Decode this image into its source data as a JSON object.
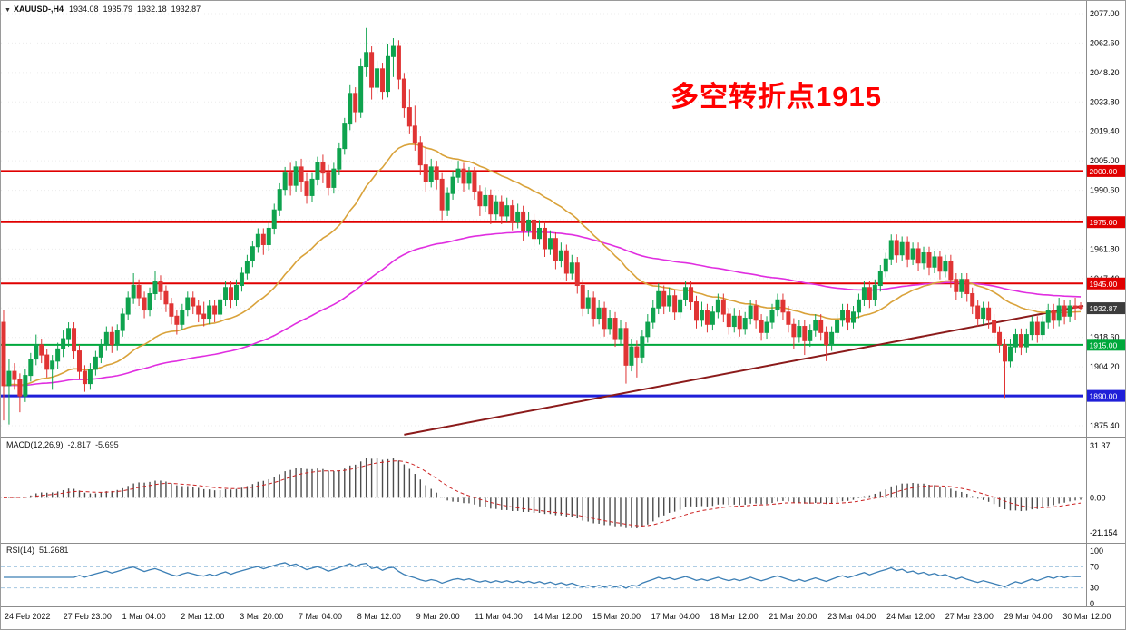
{
  "header": {
    "dropdown_icon": "▼",
    "symbol": "XAUUSD-,H4",
    "open": "1934.08",
    "high": "1935.79",
    "low": "1932.18",
    "close": "1932.87"
  },
  "annotation": {
    "text": "多空转折点1915"
  },
  "colors": {
    "up_candle": "#0fa34e",
    "down_candle": "#e03434",
    "grid": "#ececec",
    "axis_text": "#000000",
    "level_red": "#e00000",
    "level_green": "#00a83c",
    "level_blue": "#1f1fd8",
    "ma_fast": "#d9a23a",
    "ma_slow": "#e02ee0",
    "trendline": "#8b1a1a",
    "macd_hist": "#4d4d4d",
    "macd_signal": "#cc2222",
    "rsi_line": "#3c7fb5",
    "rsi_levels": "#a3c6e0",
    "current_badge": "#3c3c3c",
    "separator": "#8c8c8c"
  },
  "chart_data": {
    "type": "candlestick",
    "title": "XAUUSD-,H4",
    "symbol": "XAUUSD-",
    "timeframe": "H4",
    "y_axis": {
      "top_value": 2077.0,
      "step": 14.4,
      "labels": [
        "2077.00",
        "2062.60",
        "2048.20",
        "2033.80",
        "2019.40",
        "2005.00",
        "1990.60",
        "1976.20",
        "1961.80",
        "1947.40",
        "1933.00",
        "1918.60",
        "1904.20",
        "1889.80",
        "1875.40"
      ]
    },
    "levels": [
      {
        "label": "2000.00",
        "price": 2000.0,
        "color": "#e00000",
        "width": 2
      },
      {
        "label": "1975.00",
        "price": 1975.0,
        "color": "#e00000",
        "width": 2
      },
      {
        "label": "1945.00",
        "price": 1945.0,
        "color": "#e00000",
        "width": 2
      },
      {
        "label": "1915.00",
        "price": 1915.0,
        "color": "#00a83c",
        "width": 2
      },
      {
        "label": "1890.00",
        "price": 1890.0,
        "color": "#1f1fd8",
        "width": 3
      }
    ],
    "current_price": {
      "label": "1932.87",
      "value": 1932.87
    },
    "overlays": {
      "ma_fast": {
        "period": 30,
        "color": "#d9a23a"
      },
      "ma_slow": {
        "period": 100,
        "color": "#e02ee0"
      },
      "trendline": {
        "from_index": 74,
        "from_price": 1871,
        "to_index": 200,
        "to_price": 1934
      }
    },
    "ohlc": [
      [
        1926,
        1932,
        1878,
        1895
      ],
      [
        1895,
        1908,
        1876,
        1902
      ],
      [
        1902,
        1906,
        1893,
        1898
      ],
      [
        1898,
        1901,
        1882,
        1890
      ],
      [
        1890,
        1903,
        1887,
        1900
      ],
      [
        1900,
        1911,
        1897,
        1908
      ],
      [
        1908,
        1920,
        1905,
        1915
      ],
      [
        1915,
        1918,
        1906,
        1910
      ],
      [
        1910,
        1913,
        1899,
        1903
      ],
      [
        1903,
        1910,
        1893,
        1907
      ],
      [
        1907,
        1916,
        1903,
        1913
      ],
      [
        1913,
        1922,
        1909,
        1918
      ],
      [
        1918,
        1926,
        1914,
        1923
      ],
      [
        1923,
        1926,
        1908,
        1912
      ],
      [
        1912,
        1915,
        1898,
        1902
      ],
      [
        1902,
        1905,
        1892,
        1896
      ],
      [
        1896,
        1906,
        1893,
        1903
      ],
      [
        1903,
        1912,
        1900,
        1909
      ],
      [
        1909,
        1918,
        1906,
        1915
      ],
      [
        1915,
        1924,
        1912,
        1921
      ],
      [
        1921,
        1924,
        1911,
        1915
      ],
      [
        1915,
        1925,
        1912,
        1922
      ],
      [
        1922,
        1933,
        1919,
        1930
      ],
      [
        1930,
        1941,
        1927,
        1938
      ],
      [
        1938,
        1950,
        1935,
        1944
      ],
      [
        1944,
        1947,
        1934,
        1938
      ],
      [
        1938,
        1941,
        1928,
        1932
      ],
      [
        1932,
        1943,
        1929,
        1940
      ],
      [
        1940,
        1951,
        1937,
        1946
      ],
      [
        1946,
        1949,
        1937,
        1941
      ],
      [
        1941,
        1944,
        1931,
        1935
      ],
      [
        1935,
        1938,
        1925,
        1929
      ],
      [
        1929,
        1932,
        1920,
        1925
      ],
      [
        1925,
        1935,
        1922,
        1932
      ],
      [
        1932,
        1941,
        1929,
        1938
      ],
      [
        1938,
        1941,
        1930,
        1934
      ],
      [
        1934,
        1937,
        1926,
        1930
      ],
      [
        1930,
        1936,
        1924,
        1928
      ],
      [
        1928,
        1937,
        1925,
        1934
      ],
      [
        1934,
        1937,
        1926,
        1930
      ],
      [
        1930,
        1940,
        1927,
        1937
      ],
      [
        1937,
        1946,
        1934,
        1943
      ],
      [
        1943,
        1946,
        1933,
        1937
      ],
      [
        1937,
        1947,
        1934,
        1944
      ],
      [
        1944,
        1953,
        1941,
        1950
      ],
      [
        1950,
        1959,
        1947,
        1956
      ],
      [
        1956,
        1966,
        1953,
        1963
      ],
      [
        1963,
        1972,
        1960,
        1969
      ],
      [
        1969,
        1972,
        1959,
        1964
      ],
      [
        1964,
        1975,
        1961,
        1972
      ],
      [
        1972,
        1984,
        1969,
        1981
      ],
      [
        1981,
        1994,
        1978,
        1991
      ],
      [
        1991,
        2002,
        1988,
        1999
      ],
      [
        1999,
        2004,
        1988,
        1993
      ],
      [
        1993,
        2005,
        1990,
        2002
      ],
      [
        2002,
        2006,
        1990,
        1995
      ],
      [
        1995,
        1999,
        1984,
        1988
      ],
      [
        1988,
        1999,
        1985,
        1996
      ],
      [
        1996,
        2007,
        1993,
        2004
      ],
      [
        2004,
        2008,
        1994,
        1999
      ],
      [
        1999,
        2003,
        1988,
        1992
      ],
      [
        1992,
        2004,
        1989,
        2001
      ],
      [
        2001,
        2014,
        1998,
        2011
      ],
      [
        2011,
        2026,
        2008,
        2023
      ],
      [
        2023,
        2042,
        2020,
        2038
      ],
      [
        2038,
        2041,
        2024,
        2029
      ],
      [
        2029,
        2055,
        2026,
        2051
      ],
      [
        2051,
        2070,
        2046,
        2058
      ],
      [
        2058,
        2061,
        2035,
        2041
      ],
      [
        2041,
        2054,
        2038,
        2050
      ],
      [
        2050,
        2053,
        2035,
        2039
      ],
      [
        2039,
        2062,
        2036,
        2056
      ],
      [
        2056,
        2065,
        2046,
        2061
      ],
      [
        2061,
        2064,
        2040,
        2045
      ],
      [
        2045,
        2048,
        2026,
        2031
      ],
      [
        2031,
        2040,
        2018,
        2022
      ],
      [
        2022,
        2032,
        2010,
        2014
      ],
      [
        2014,
        2017,
        1998,
        2003
      ],
      [
        2003,
        2012,
        1990,
        1995
      ],
      [
        1995,
        2006,
        1992,
        2002
      ],
      [
        2002,
        2005,
        1991,
        1996
      ],
      [
        1996,
        1999,
        1976,
        1981
      ],
      [
        1981,
        1992,
        1978,
        1989
      ],
      [
        1989,
        2000,
        1986,
        1997
      ],
      [
        1997,
        2005,
        1994,
        2001
      ],
      [
        2001,
        2004,
        1990,
        1994
      ],
      [
        1994,
        2002,
        1991,
        1999
      ],
      [
        1999,
        2002,
        1986,
        1990
      ],
      [
        1990,
        1993,
        1978,
        1983
      ],
      [
        1983,
        1992,
        1980,
        1988
      ],
      [
        1988,
        1991,
        1974,
        1979
      ],
      [
        1979,
        1988,
        1976,
        1985
      ],
      [
        1985,
        1988,
        1974,
        1978
      ],
      [
        1978,
        1987,
        1975,
        1983
      ],
      [
        1983,
        1986,
        1971,
        1975
      ],
      [
        1975,
        1984,
        1972,
        1980
      ],
      [
        1980,
        1983,
        1966,
        1971
      ],
      [
        1971,
        1980,
        1968,
        1976
      ],
      [
        1976,
        1979,
        1963,
        1967
      ],
      [
        1967,
        1976,
        1964,
        1972
      ],
      [
        1972,
        1975,
        1958,
        1962
      ],
      [
        1962,
        1971,
        1959,
        1967
      ],
      [
        1967,
        1970,
        1952,
        1956
      ],
      [
        1956,
        1965,
        1953,
        1961
      ],
      [
        1961,
        1964,
        1946,
        1950
      ],
      [
        1950,
        1959,
        1947,
        1955
      ],
      [
        1955,
        1958,
        1940,
        1944
      ],
      [
        1944,
        1947,
        1929,
        1933
      ],
      [
        1933,
        1942,
        1930,
        1938
      ],
      [
        1938,
        1941,
        1924,
        1928
      ],
      [
        1928,
        1937,
        1925,
        1933
      ],
      [
        1933,
        1936,
        1919,
        1923
      ],
      [
        1923,
        1932,
        1920,
        1928
      ],
      [
        1928,
        1931,
        1914,
        1918
      ],
      [
        1918,
        1927,
        1915,
        1923
      ],
      [
        1923,
        1926,
        1896,
        1905
      ],
      [
        1905,
        1918,
        1902,
        1914
      ],
      [
        1914,
        1917,
        1899,
        1909
      ],
      [
        1909,
        1922,
        1906,
        1919
      ],
      [
        1919,
        1930,
        1916,
        1926
      ],
      [
        1926,
        1937,
        1923,
        1933
      ],
      [
        1933,
        1945,
        1930,
        1941
      ],
      [
        1941,
        1944,
        1930,
        1934
      ],
      [
        1934,
        1943,
        1931,
        1939
      ],
      [
        1939,
        1942,
        1927,
        1931
      ],
      [
        1931,
        1940,
        1928,
        1937
      ],
      [
        1937,
        1946,
        1934,
        1943
      ],
      [
        1943,
        1946,
        1932,
        1936
      ],
      [
        1936,
        1939,
        1923,
        1927
      ],
      [
        1927,
        1936,
        1924,
        1932
      ],
      [
        1932,
        1935,
        1921,
        1925
      ],
      [
        1925,
        1934,
        1922,
        1931
      ],
      [
        1931,
        1940,
        1928,
        1937
      ],
      [
        1937,
        1940,
        1926,
        1930
      ],
      [
        1930,
        1933,
        1920,
        1924
      ],
      [
        1924,
        1933,
        1921,
        1929
      ],
      [
        1929,
        1932,
        1919,
        1923
      ],
      [
        1923,
        1931,
        1920,
        1928
      ],
      [
        1928,
        1937,
        1925,
        1934
      ],
      [
        1934,
        1937,
        1923,
        1927
      ],
      [
        1927,
        1930,
        1917,
        1921
      ],
      [
        1921,
        1929,
        1918,
        1926
      ],
      [
        1926,
        1935,
        1923,
        1932
      ],
      [
        1932,
        1940,
        1929,
        1937
      ],
      [
        1937,
        1940,
        1927,
        1931
      ],
      [
        1931,
        1934,
        1921,
        1925
      ],
      [
        1925,
        1928,
        1913,
        1919
      ],
      [
        1919,
        1927,
        1916,
        1924
      ],
      [
        1924,
        1927,
        1910,
        1917
      ],
      [
        1917,
        1925,
        1914,
        1922
      ],
      [
        1922,
        1930,
        1919,
        1927
      ],
      [
        1927,
        1930,
        1917,
        1921
      ],
      [
        1921,
        1924,
        1907,
        1915
      ],
      [
        1915,
        1924,
        1912,
        1921
      ],
      [
        1921,
        1930,
        1918,
        1927
      ],
      [
        1927,
        1935,
        1924,
        1932
      ],
      [
        1932,
        1935,
        1922,
        1926
      ],
      [
        1926,
        1934,
        1923,
        1931
      ],
      [
        1931,
        1940,
        1928,
        1937
      ],
      [
        1937,
        1946,
        1934,
        1943
      ],
      [
        1943,
        1946,
        1933,
        1937
      ],
      [
        1937,
        1947,
        1934,
        1944
      ],
      [
        1944,
        1954,
        1941,
        1951
      ],
      [
        1951,
        1960,
        1948,
        1957
      ],
      [
        1957,
        1969,
        1954,
        1966
      ],
      [
        1966,
        1969,
        1955,
        1959
      ],
      [
        1959,
        1968,
        1956,
        1965
      ],
      [
        1965,
        1968,
        1953,
        1957
      ],
      [
        1957,
        1965,
        1954,
        1962
      ],
      [
        1962,
        1965,
        1951,
        1955
      ],
      [
        1955,
        1963,
        1952,
        1960
      ],
      [
        1960,
        1963,
        1949,
        1953
      ],
      [
        1953,
        1961,
        1950,
        1958
      ],
      [
        1958,
        1961,
        1947,
        1951
      ],
      [
        1951,
        1959,
        1948,
        1956
      ],
      [
        1956,
        1959,
        1943,
        1947
      ],
      [
        1947,
        1950,
        1937,
        1941
      ],
      [
        1941,
        1950,
        1938,
        1947
      ],
      [
        1947,
        1950,
        1936,
        1940
      ],
      [
        1940,
        1943,
        1930,
        1934
      ],
      [
        1934,
        1937,
        1924,
        1928
      ],
      [
        1928,
        1936,
        1925,
        1933
      ],
      [
        1933,
        1936,
        1923,
        1927
      ],
      [
        1927,
        1930,
        1917,
        1921
      ],
      [
        1921,
        1924,
        1911,
        1915
      ],
      [
        1915,
        1918,
        1889,
        1907
      ],
      [
        1907,
        1918,
        1904,
        1914
      ],
      [
        1914,
        1923,
        1911,
        1920
      ],
      [
        1920,
        1923,
        1910,
        1914
      ],
      [
        1914,
        1923,
        1911,
        1920
      ],
      [
        1920,
        1929,
        1917,
        1926
      ],
      [
        1926,
        1929,
        1916,
        1920
      ],
      [
        1920,
        1929,
        1917,
        1926
      ],
      [
        1926,
        1935,
        1923,
        1932
      ],
      [
        1932,
        1935,
        1923,
        1927
      ],
      [
        1927,
        1938,
        1924,
        1934
      ],
      [
        1934,
        1937,
        1925,
        1929
      ],
      [
        1929,
        1937,
        1926,
        1934
      ],
      [
        1934,
        1938,
        1927,
        1933
      ],
      [
        1934.08,
        1935.79,
        1932.18,
        1932.87
      ]
    ],
    "x_labels": [
      "24 Feb 2022",
      "27 Feb 23:00",
      "1 Mar 04:00",
      "2 Mar 12:00",
      "3 Mar 20:00",
      "7 Mar 04:00",
      "8 Mar 12:00",
      "9 Mar 20:00",
      "11 Mar 04:00",
      "14 Mar 12:00",
      "15 Mar 20:00",
      "17 Mar 04:00",
      "18 Mar 12:00",
      "21 Mar 20:00",
      "23 Mar 04:00",
      "24 Mar 12:00",
      "27 Mar 23:00",
      "29 Mar 04:00",
      "30 Mar 12:00"
    ],
    "indicators": {
      "macd": {
        "label": "MACD(12,26,9)",
        "value_main": "-2.817",
        "value_signal": "-5.695",
        "fast": 12,
        "slow": 26,
        "signal_period": 9,
        "axis_labels": [
          "31.37",
          "0.00",
          "-21.154"
        ],
        "axis_values": [
          31.37,
          0,
          -21.154
        ]
      },
      "rsi": {
        "label": "RSI(14)",
        "value": "51.2681",
        "period": 14,
        "levels": [
          70,
          30
        ],
        "axis_labels": [
          "100",
          "70",
          "30",
          "0"
        ],
        "axis_values": [
          100,
          70,
          30,
          0
        ]
      }
    }
  }
}
